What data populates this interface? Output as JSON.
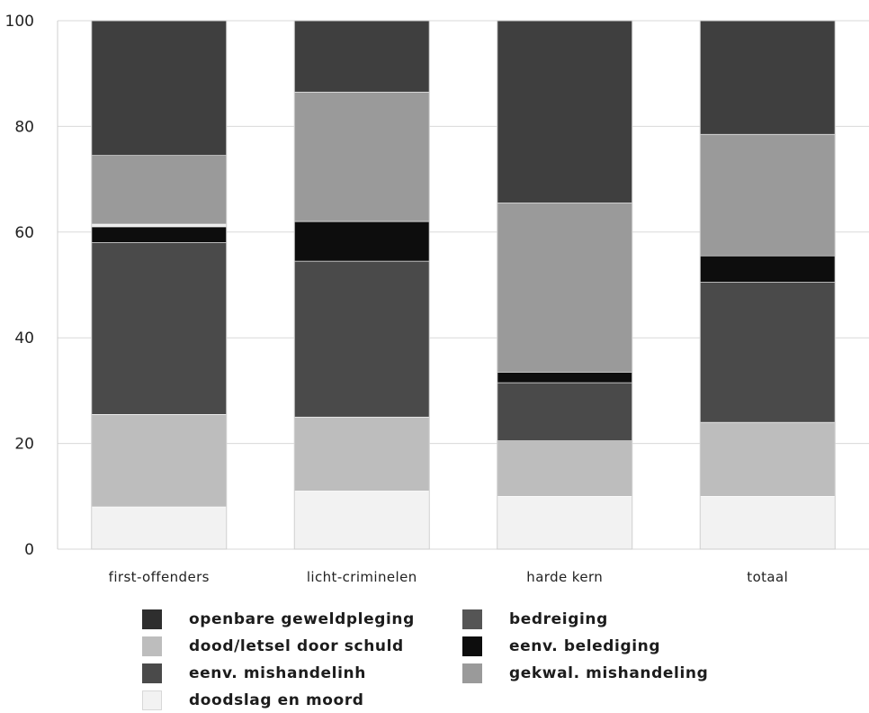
{
  "chart_data": {
    "type": "bar",
    "stacked": true,
    "ylim": [
      0,
      100
    ],
    "y_ticks": [
      0,
      20,
      40,
      60,
      80,
      100
    ],
    "grid": true,
    "legend_position": "bottom",
    "categories": [
      "first-offenders",
      "licht-criminelen",
      "harde kern",
      "totaal"
    ],
    "series": [
      {
        "name": "doodslag en moord",
        "color": "#f2f2f2",
        "values": [
          8,
          11,
          10,
          10
        ]
      },
      {
        "name": "dood/letsel door schuld",
        "color": "#bdbdbd",
        "values": [
          17.5,
          14,
          10.5,
          14
        ]
      },
      {
        "name": "eenv. mishandelinh",
        "color": "#4a4a4a",
        "values": [
          32.5,
          29.5,
          11,
          26.5
        ]
      },
      {
        "name": "eenv. belediging",
        "color": "#0d0d0d",
        "values": [
          3,
          7.5,
          2,
          5
        ]
      },
      {
        "name": "openbare geweldpleging",
        "color": "#e8e8e8",
        "values": [
          0.5,
          0,
          0,
          0
        ]
      },
      {
        "name": "gekwal. mishandeling",
        "color": "#9a9a9a",
        "values": [
          13,
          24.5,
          32,
          23
        ]
      },
      {
        "name": "bedreiging",
        "color": "#3f3f3f",
        "values": [
          25.5,
          13.5,
          34.5,
          21.5
        ]
      }
    ],
    "legend": [
      {
        "label": "openbare geweldpleging",
        "color": "#2e2e2e"
      },
      {
        "label": "bedreiging",
        "color": "#555555"
      },
      {
        "label": "dood/letsel door schuld",
        "color": "#bdbdbd"
      },
      {
        "label": "eenv. belediging",
        "color": "#0d0d0d"
      },
      {
        "label": "eenv. mishandelinh",
        "color": "#4a4a4a"
      },
      {
        "label": "gekwal. mishandeling",
        "color": "#9a9a9a"
      },
      {
        "label": "doodslag en moord",
        "color": "#f2f2f2"
      }
    ]
  }
}
